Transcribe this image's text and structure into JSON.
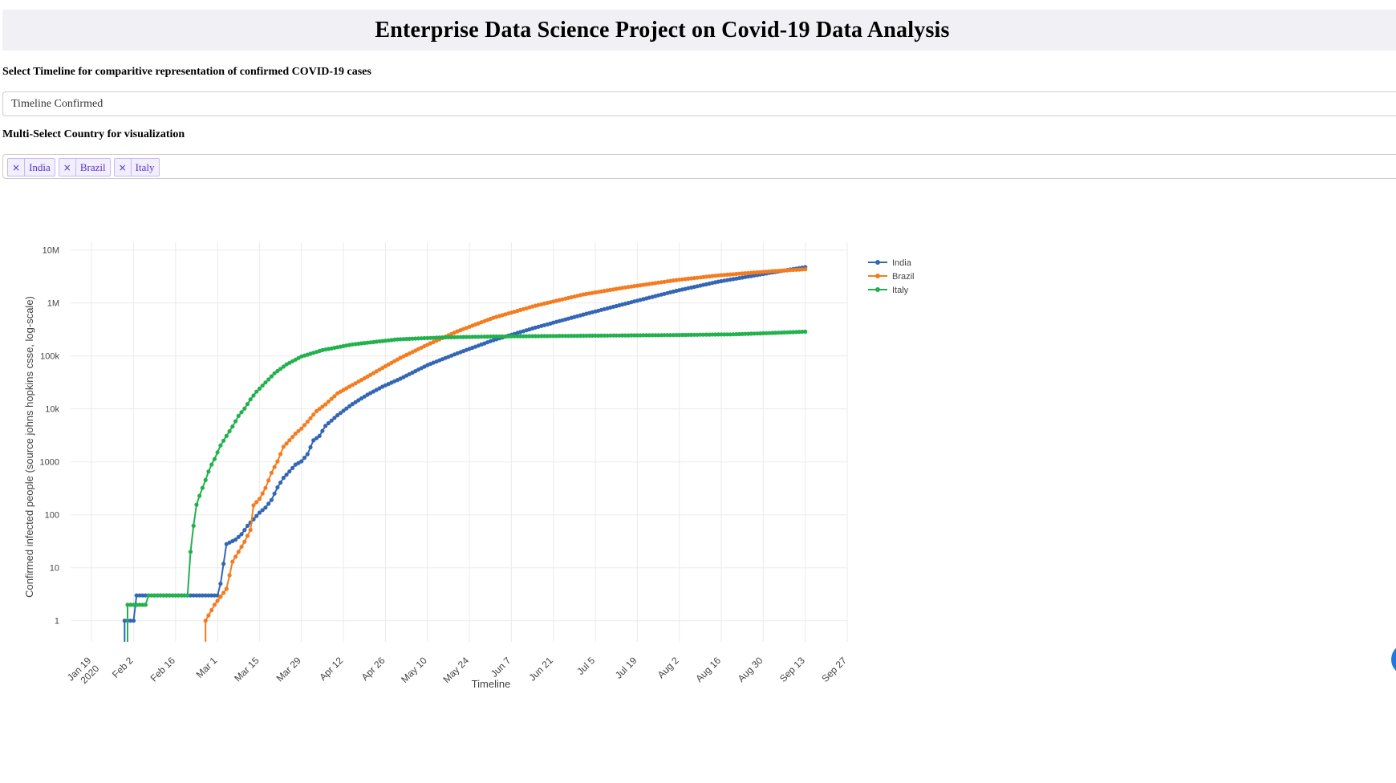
{
  "header": {
    "title": "Enterprise Data Science Project on Covid-19 Data Analysis"
  },
  "timeline_selector": {
    "label": "Select Timeline for comparitive representation of confirmed COVID-19 cases",
    "value": "Timeline Confirmed"
  },
  "country_selector": {
    "label": "Multi-Select Country for visualization",
    "remove_glyph": "×",
    "selected": [
      "India",
      "Brazil",
      "Italy"
    ]
  },
  "chart_data": {
    "type": "line",
    "title": "",
    "xlabel": "Timeline",
    "ylabel": "Confirmed infected people (source johns hopkins csse, log-scale)",
    "yscale": "log",
    "xlim": [
      "2020-01-12",
      "2020-09-27"
    ],
    "ylim": [
      0.4,
      14000000
    ],
    "x_ticks": [
      {
        "date": "2020-01-19",
        "label": "Jan 19",
        "sub": "2020"
      },
      {
        "date": "2020-02-02",
        "label": "Feb 2"
      },
      {
        "date": "2020-02-16",
        "label": "Feb 16"
      },
      {
        "date": "2020-03-01",
        "label": "Mar 1"
      },
      {
        "date": "2020-03-15",
        "label": "Mar 15"
      },
      {
        "date": "2020-03-29",
        "label": "Mar 29"
      },
      {
        "date": "2020-04-12",
        "label": "Apr 12"
      },
      {
        "date": "2020-04-26",
        "label": "Apr 26"
      },
      {
        "date": "2020-05-10",
        "label": "May 10"
      },
      {
        "date": "2020-05-24",
        "label": "May 24"
      },
      {
        "date": "2020-06-07",
        "label": "Jun 7"
      },
      {
        "date": "2020-06-21",
        "label": "Jun 21"
      },
      {
        "date": "2020-07-05",
        "label": "Jul 5"
      },
      {
        "date": "2020-07-19",
        "label": "Jul 19"
      },
      {
        "date": "2020-08-02",
        "label": "Aug 2"
      },
      {
        "date": "2020-08-16",
        "label": "Aug 16"
      },
      {
        "date": "2020-08-30",
        "label": "Aug 30"
      },
      {
        "date": "2020-09-13",
        "label": "Sep 13"
      },
      {
        "date": "2020-09-27",
        "label": "Sep 27"
      }
    ],
    "y_ticks": [
      {
        "value": 1,
        "label": "1"
      },
      {
        "value": 10,
        "label": "10"
      },
      {
        "value": 100,
        "label": "100"
      },
      {
        "value": 1000,
        "label": "1000"
      },
      {
        "value": 10000,
        "label": "10k"
      },
      {
        "value": 100000,
        "label": "100k"
      },
      {
        "value": 1000000,
        "label": "1M"
      },
      {
        "value": 10000000,
        "label": "10M"
      }
    ],
    "grid": true,
    "legend": "top-right",
    "series": [
      {
        "name": "India",
        "color": "#3366b5",
        "points": [
          [
            "2020-01-30",
            1
          ],
          [
            "2020-02-02",
            1
          ],
          [
            "2020-02-03",
            3
          ],
          [
            "2020-03-01",
            3
          ],
          [
            "2020-03-02",
            5
          ],
          [
            "2020-03-04",
            28
          ],
          [
            "2020-03-07",
            34
          ],
          [
            "2020-03-09",
            43
          ],
          [
            "2020-03-11",
            62
          ],
          [
            "2020-03-13",
            82
          ],
          [
            "2020-03-15",
            110
          ],
          [
            "2020-03-17",
            137
          ],
          [
            "2020-03-19",
            191
          ],
          [
            "2020-03-21",
            330
          ],
          [
            "2020-03-23",
            499
          ],
          [
            "2020-03-25",
            657
          ],
          [
            "2020-03-27",
            887
          ],
          [
            "2020-03-29",
            1024
          ],
          [
            "2020-03-31",
            1397
          ],
          [
            "2020-04-02",
            2543
          ],
          [
            "2020-04-04",
            3082
          ],
          [
            "2020-04-06",
            4778
          ],
          [
            "2020-04-10",
            7600
          ],
          [
            "2020-04-15",
            12370
          ],
          [
            "2020-04-20",
            18539
          ],
          [
            "2020-04-25",
            26283
          ],
          [
            "2020-05-01",
            37257
          ],
          [
            "2020-05-10",
            67161
          ],
          [
            "2020-05-20",
            112359
          ],
          [
            "2020-06-01",
            198706
          ],
          [
            "2020-06-15",
            343091
          ],
          [
            "2020-07-01",
            604641
          ],
          [
            "2020-07-15",
            968876
          ],
          [
            "2020-08-01",
            1695988
          ],
          [
            "2020-08-15",
            2526192
          ],
          [
            "2020-09-01",
            3691166
          ],
          [
            "2020-09-13",
            4754356
          ]
        ]
      },
      {
        "name": "Brazil",
        "color": "#f47c20",
        "points": [
          [
            "2020-02-26",
            1
          ],
          [
            "2020-02-29",
            2
          ],
          [
            "2020-03-04",
            4
          ],
          [
            "2020-03-06",
            13
          ],
          [
            "2020-03-08",
            20
          ],
          [
            "2020-03-10",
            31
          ],
          [
            "2020-03-12",
            52
          ],
          [
            "2020-03-13",
            151
          ],
          [
            "2020-03-15",
            200
          ],
          [
            "2020-03-17",
            321
          ],
          [
            "2020-03-19",
            621
          ],
          [
            "2020-03-21",
            1021
          ],
          [
            "2020-03-23",
            1924
          ],
          [
            "2020-03-25",
            2554
          ],
          [
            "2020-03-27",
            3417
          ],
          [
            "2020-03-29",
            4256
          ],
          [
            "2020-03-31",
            5717
          ],
          [
            "2020-04-03",
            9056
          ],
          [
            "2020-04-06",
            12161
          ],
          [
            "2020-04-10",
            19638
          ],
          [
            "2020-04-15",
            28320
          ],
          [
            "2020-04-20",
            40743
          ],
          [
            "2020-04-25",
            59324
          ],
          [
            "2020-05-01",
            92202
          ],
          [
            "2020-05-10",
            162699
          ],
          [
            "2020-05-20",
            291579
          ],
          [
            "2020-06-01",
            526447
          ],
          [
            "2020-06-15",
            888271
          ],
          [
            "2020-07-01",
            1448753
          ],
          [
            "2020-07-15",
            1966748
          ],
          [
            "2020-08-01",
            2707877
          ],
          [
            "2020-08-15",
            3317096
          ],
          [
            "2020-09-01",
            3950931
          ],
          [
            "2020-09-13",
            4330455
          ]
        ]
      },
      {
        "name": "Italy",
        "color": "#22b14c",
        "points": [
          [
            "2020-01-31",
            2
          ],
          [
            "2020-02-06",
            2
          ],
          [
            "2020-02-07",
            3
          ],
          [
            "2020-02-20",
            3
          ],
          [
            "2020-02-21",
            20
          ],
          [
            "2020-02-22",
            62
          ],
          [
            "2020-02-23",
            155
          ],
          [
            "2020-02-24",
            229
          ],
          [
            "2020-02-25",
            322
          ],
          [
            "2020-02-26",
            453
          ],
          [
            "2020-02-27",
            655
          ],
          [
            "2020-02-28",
            888
          ],
          [
            "2020-02-29",
            1128
          ],
          [
            "2020-03-02",
            2036
          ],
          [
            "2020-03-04",
            3089
          ],
          [
            "2020-03-06",
            4636
          ],
          [
            "2020-03-08",
            7375
          ],
          [
            "2020-03-10",
            10149
          ],
          [
            "2020-03-12",
            15113
          ],
          [
            "2020-03-14",
            21157
          ],
          [
            "2020-03-17",
            31506
          ],
          [
            "2020-03-20",
            47021
          ],
          [
            "2020-03-24",
            69176
          ],
          [
            "2020-03-29",
            97689
          ],
          [
            "2020-04-05",
            128948
          ],
          [
            "2020-04-15",
            165155
          ],
          [
            "2020-04-30",
            205463
          ],
          [
            "2020-05-15",
            223885
          ],
          [
            "2020-06-01",
            233019
          ],
          [
            "2020-07-01",
            240578
          ],
          [
            "2020-08-01",
            248070
          ],
          [
            "2020-08-20",
            256118
          ],
          [
            "2020-09-01",
            270189
          ],
          [
            "2020-09-13",
            287753
          ]
        ]
      }
    ]
  }
}
